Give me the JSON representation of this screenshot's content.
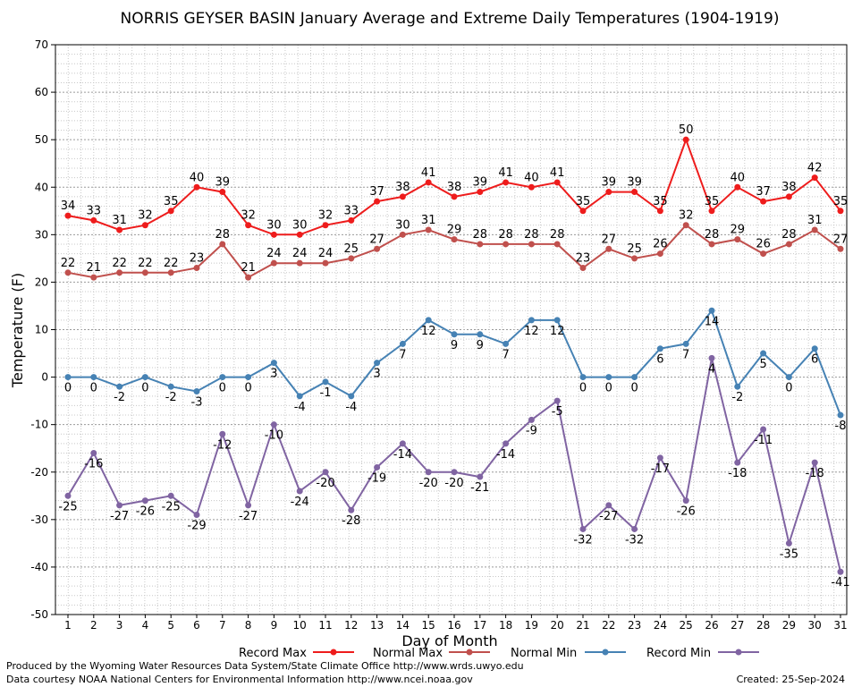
{
  "chart_data": {
    "type": "line",
    "title": "NORRIS GEYSER BASIN January Average and Extreme Daily Temperatures (1904-1919)",
    "xlabel": "Day of Month",
    "ylabel": "Temperature (F)",
    "ylim": [
      -50,
      70
    ],
    "yticks": [
      "70",
      "60",
      "50",
      "40",
      "30",
      "20",
      "10",
      "0",
      "-10",
      "-20",
      "-30",
      "-40",
      "-50"
    ],
    "x": [
      1,
      2,
      3,
      4,
      5,
      6,
      7,
      8,
      9,
      10,
      11,
      12,
      13,
      14,
      15,
      16,
      17,
      18,
      19,
      20,
      21,
      22,
      23,
      24,
      25,
      26,
      27,
      28,
      29,
      30,
      31
    ],
    "grid": true,
    "legend_position": "bottom",
    "series": [
      {
        "name": "Record Max",
        "color": "#ee1c1c",
        "label_pos": "above",
        "values": [
          34,
          33,
          31,
          32,
          35,
          40,
          39,
          32,
          30,
          30,
          32,
          33,
          37,
          38,
          41,
          38,
          39,
          41,
          40,
          41,
          35,
          39,
          39,
          35,
          50,
          35,
          40,
          37,
          38,
          42,
          35
        ]
      },
      {
        "name": "Normal Max",
        "color": "#c0504d",
        "label_pos": "above",
        "values": [
          22,
          21,
          22,
          22,
          22,
          23,
          28,
          21,
          24,
          24,
          24,
          25,
          27,
          30,
          31,
          29,
          28,
          28,
          28,
          28,
          23,
          27,
          25,
          26,
          32,
          28,
          29,
          26,
          28,
          31,
          27
        ]
      },
      {
        "name": "Normal Min",
        "color": "#4682b4",
        "label_pos": "below",
        "values": [
          0,
          0,
          -2,
          0,
          -2,
          -3,
          0,
          0,
          3,
          -4,
          -1,
          -4,
          3,
          7,
          12,
          9,
          9,
          7,
          12,
          12,
          0,
          0,
          0,
          6,
          7,
          14,
          -2,
          5,
          0,
          6,
          -8
        ]
      },
      {
        "name": "Record Min",
        "color": "#8064a2",
        "label_pos": "below",
        "values": [
          -25,
          -16,
          -27,
          -26,
          -25,
          -29,
          -12,
          -27,
          -10,
          -24,
          -20,
          -28,
          -19,
          -14,
          -20,
          -20,
          -21,
          -14,
          -9,
          -5,
          -32,
          -27,
          -32,
          -17,
          -26,
          4,
          -18,
          -11,
          -35,
          -18,
          -41
        ]
      }
    ]
  },
  "footer": {
    "line1": "Produced by the Wyoming Water Resources Data System/State Climate Office http://www.wrds.uwyo.edu",
    "line2": "Data courtesy NOAA National Centers for Environmental Information http://www.ncei.noaa.gov",
    "created": "Created:  25-Sep-2024"
  }
}
